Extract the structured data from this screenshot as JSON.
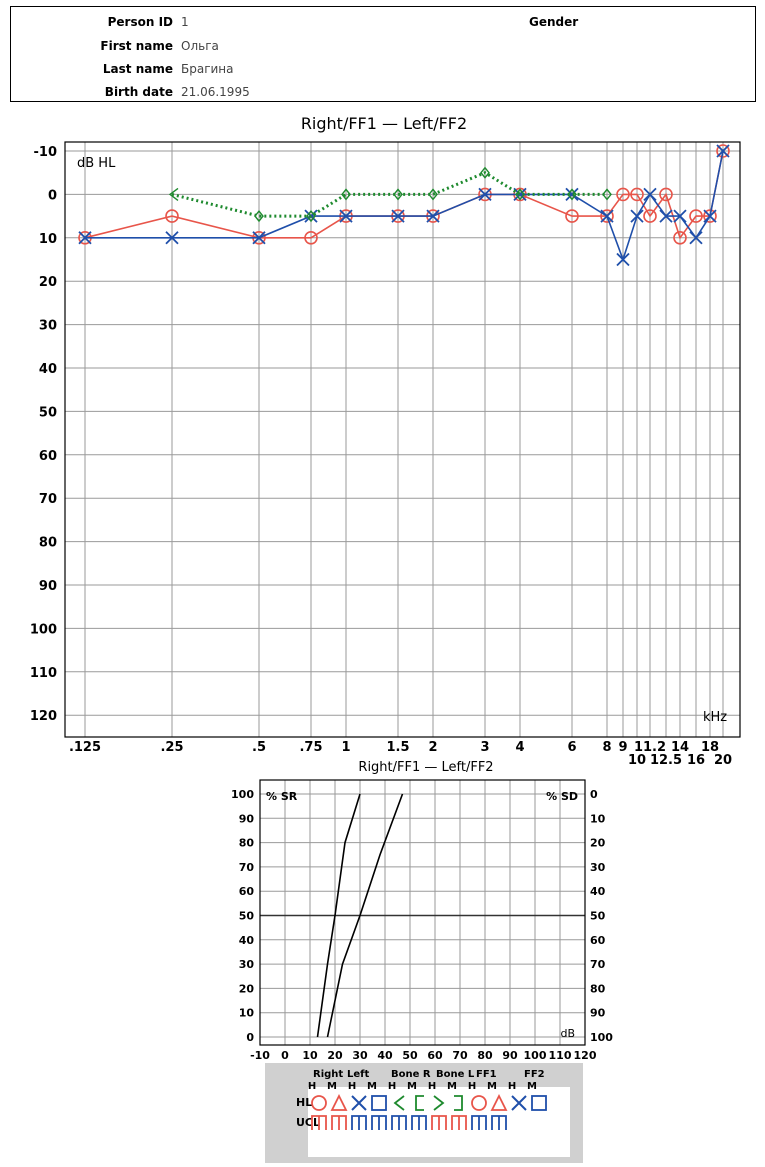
{
  "patient": {
    "fields": [
      {
        "label": "Person ID",
        "value": "1"
      },
      {
        "label": "First name",
        "value": "Ольга"
      },
      {
        "label": "Last name",
        "value": "Брагина"
      },
      {
        "label": "Birth date",
        "value": "21.06.1995"
      }
    ],
    "gender_label": "Gender"
  },
  "chart_data": [
    {
      "type": "line",
      "title": "Right/FF1 — Left/FF2",
      "ylabel": "dB HL",
      "xlabel": "kHz",
      "ylim": [
        -10,
        120
      ],
      "y_inverted": true,
      "y_ticks": [
        -10,
        0,
        10,
        20,
        30,
        40,
        50,
        60,
        70,
        80,
        90,
        100,
        110,
        120
      ],
      "y_tick_labels": [
        "-10",
        "0",
        "10",
        "20",
        "30",
        "40",
        "50",
        "60",
        "70",
        "80",
        "90",
        "100",
        "110",
        "120"
      ],
      "x_scale": "log",
      "x_ticks": [
        0.125,
        0.25,
        0.5,
        0.75,
        1,
        1.5,
        2,
        3,
        4,
        6,
        8,
        9,
        10,
        11.2,
        12.5,
        14,
        16,
        18,
        20
      ],
      "x_tick_labels": [
        ".125",
        ".25",
        ".5",
        ".75",
        "1",
        "1.5",
        "2",
        "3",
        "4",
        "6",
        "8",
        "9",
        "10",
        "11.2",
        "12.5",
        "14",
        "16",
        "18",
        "20"
      ],
      "grid": true,
      "series": [
        {
          "name": "Right",
          "color": "#e8554a",
          "marker": "circle",
          "dash": "solid",
          "x": [
            0.125,
            0.25,
            0.5,
            0.75,
            1,
            1.5,
            2,
            3,
            4,
            6,
            8,
            9,
            10,
            11.2,
            12.5,
            14,
            16,
            18,
            20
          ],
          "y": [
            10,
            5,
            10,
            10,
            5,
            5,
            5,
            0,
            0,
            5,
            5,
            0,
            0,
            5,
            0,
            10,
            5,
            5,
            -10
          ]
        },
        {
          "name": "Left",
          "color": "#1f4faa",
          "marker": "cross",
          "dash": "solid",
          "x": [
            0.125,
            0.25,
            0.5,
            0.75,
            1,
            1.5,
            2,
            3,
            4,
            6,
            8,
            9,
            10,
            11.2,
            12.5,
            14,
            16,
            18,
            20
          ],
          "y": [
            10,
            10,
            10,
            5,
            5,
            5,
            5,
            0,
            0,
            0,
            5,
            15,
            5,
            0,
            5,
            5,
            10,
            5,
            -10
          ]
        },
        {
          "name": "Bone",
          "color": "#1e8a2e",
          "marker": "bone",
          "dash": "dotted",
          "x": [
            0.25,
            0.5,
            0.75,
            1,
            1.5,
            2,
            3,
            4,
            6,
            8
          ],
          "y": [
            0,
            5,
            5,
            0,
            0,
            0,
            -5,
            0,
            0,
            0
          ]
        }
      ]
    },
    {
      "type": "line",
      "title": "Right/FF1 — Left/FF2",
      "ylabel": "% SR",
      "y2label": "% SD",
      "xlabel": "dB",
      "xlim": [
        -10,
        120
      ],
      "ylim": [
        0,
        100
      ],
      "x_tick_labels": [
        "-10",
        "0",
        "10",
        "20",
        "30",
        "40",
        "50",
        "60",
        "70",
        "80",
        "90",
        "100",
        "110",
        "120"
      ],
      "y_tick_labels": [
        "0",
        "10",
        "20",
        "30",
        "40",
        "50",
        "60",
        "70",
        "80",
        "90",
        "100"
      ],
      "y2_tick_labels": [
        "100",
        "90",
        "80",
        "70",
        "60",
        "50",
        "40",
        "30",
        "20",
        "10",
        "0"
      ],
      "grid": true,
      "series": [
        {
          "color": "#000000",
          "x": [
            13,
            17,
            20,
            24,
            30
          ],
          "y": [
            0,
            30,
            50,
            80,
            100
          ]
        },
        {
          "color": "#000000",
          "x": [
            17,
            23,
            30,
            38,
            47
          ],
          "y": [
            0,
            30,
            50,
            75,
            100
          ]
        }
      ]
    }
  ],
  "legend": {
    "columns": [
      "Right",
      "Left",
      "Bone R",
      "Bone L",
      "FF1",
      "FF2"
    ],
    "sub_headers": [
      "H",
      "M",
      "H",
      "M",
      "H",
      "M",
      "H",
      "M",
      "H",
      "M",
      "H",
      "M"
    ],
    "row_labels": [
      "HL",
      "UCL"
    ],
    "colors": {
      "red": "#e8554a",
      "blue": "#1f4faa",
      "green": "#1e8a2e"
    }
  }
}
